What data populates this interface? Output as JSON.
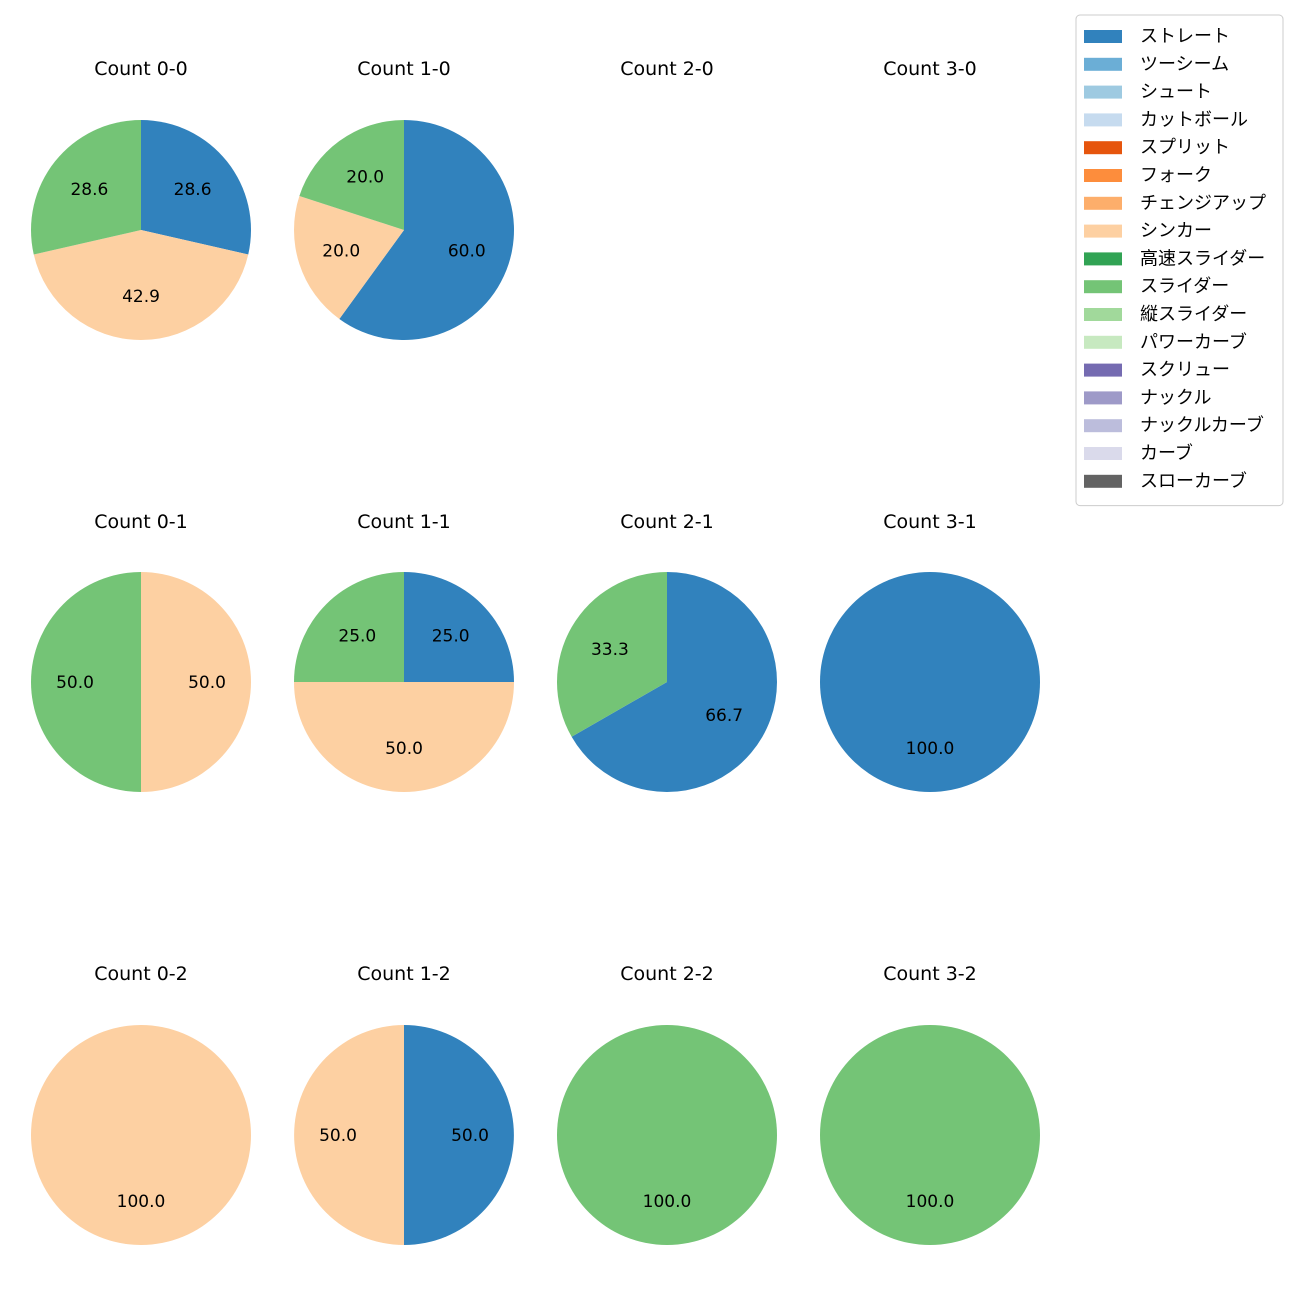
{
  "categories": [
    "ストレート",
    "ツーシーム",
    "シュート",
    "カットボール",
    "スプリット",
    "フォーク",
    "チェンジアップ",
    "シンカー",
    "高速スライダー",
    "スライダー",
    "縦スライダー",
    "パワーカーブ",
    "スクリュー",
    "ナックル",
    "ナックルカーブ",
    "カーブ",
    "スローカーブ"
  ],
  "colors": [
    "#3182bd",
    "#6baed6",
    "#9ecae1",
    "#c6dbef",
    "#e6550d",
    "#fd8d3c",
    "#fdae6b",
    "#fdd0a2",
    "#31a354",
    "#74c476",
    "#a1d99b",
    "#c7e9c0",
    "#756bb1",
    "#9e9ac8",
    "#bcbddc",
    "#dadaeb",
    "#636363"
  ],
  "chart_data": [
    {
      "type": "pie",
      "title": "Count 0-0",
      "slices": [
        {
          "label": "ストレート",
          "value": 28.6
        },
        {
          "label": "シンカー",
          "value": 42.9
        },
        {
          "label": "スライダー",
          "value": 28.6
        }
      ]
    },
    {
      "type": "pie",
      "title": "Count 1-0",
      "slices": [
        {
          "label": "ストレート",
          "value": 60.0
        },
        {
          "label": "シンカー",
          "value": 20.0
        },
        {
          "label": "スライダー",
          "value": 20.0
        }
      ]
    },
    {
      "type": "pie",
      "title": "Count 2-0",
      "slices": []
    },
    {
      "type": "pie",
      "title": "Count 3-0",
      "slices": []
    },
    {
      "type": "pie",
      "title": "Count 0-1",
      "slices": [
        {
          "label": "シンカー",
          "value": 50.0
        },
        {
          "label": "スライダー",
          "value": 50.0
        }
      ]
    },
    {
      "type": "pie",
      "title": "Count 1-1",
      "slices": [
        {
          "label": "ストレート",
          "value": 25.0
        },
        {
          "label": "シンカー",
          "value": 50.0
        },
        {
          "label": "スライダー",
          "value": 25.0
        }
      ]
    },
    {
      "type": "pie",
      "title": "Count 2-1",
      "slices": [
        {
          "label": "ストレート",
          "value": 66.7
        },
        {
          "label": "スライダー",
          "value": 33.3
        }
      ]
    },
    {
      "type": "pie",
      "title": "Count 3-1",
      "slices": [
        {
          "label": "ストレート",
          "value": 100.0
        }
      ]
    },
    {
      "type": "pie",
      "title": "Count 0-2",
      "slices": [
        {
          "label": "シンカー",
          "value": 100.0
        }
      ]
    },
    {
      "type": "pie",
      "title": "Count 1-2",
      "slices": [
        {
          "label": "ストレート",
          "value": 50.0
        },
        {
          "label": "シンカー",
          "value": 50.0
        }
      ]
    },
    {
      "type": "pie",
      "title": "Count 2-2",
      "slices": [
        {
          "label": "スライダー",
          "value": 100.0
        }
      ]
    },
    {
      "type": "pie",
      "title": "Count 3-2",
      "slices": [
        {
          "label": "スライダー",
          "value": 100.0
        }
      ]
    }
  ]
}
